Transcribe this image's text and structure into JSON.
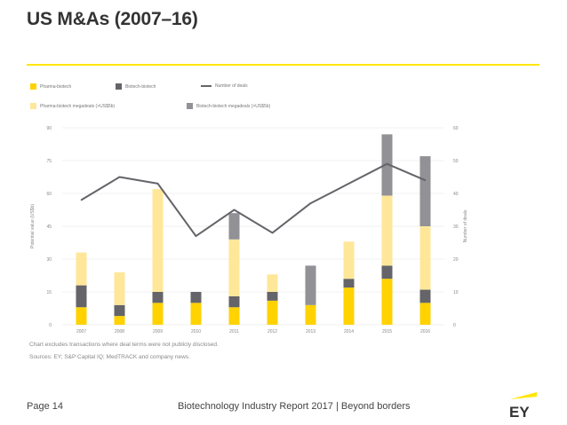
{
  "header": {
    "title": "US M&As (2007–16)"
  },
  "legend": {
    "items": [
      {
        "label": "Pharma-biotech",
        "color": "#ffd200"
      },
      {
        "label": "Biotech-biotech",
        "color": "#646469"
      },
      {
        "label": "Number of deals",
        "color": "#646469"
      },
      {
        "label": "Pharma-biotech megadeals (>US$5b)",
        "color": "#ffe79a"
      },
      {
        "label": "Biotech-biotech megadeals (>US$5b)",
        "color": "#919196"
      }
    ]
  },
  "chart_data": {
    "type": "bar",
    "stacked": true,
    "title": "US M&As (2007–16)",
    "xlabel": "",
    "ylabel": "Potential value (US$b)",
    "y2label": "Number of deals",
    "ylim": [
      0,
      90
    ],
    "y2lim": [
      0,
      60
    ],
    "yticks": [
      "0",
      "15",
      "30",
      "45",
      "60",
      "75",
      "90"
    ],
    "y2ticks": [
      "0",
      "10",
      "20",
      "30",
      "40",
      "50",
      "60"
    ],
    "categories": [
      "2007",
      "2008",
      "2009",
      "2010",
      "2011",
      "2012",
      "2013",
      "2014",
      "2015",
      "2016"
    ],
    "series": [
      {
        "name": "Pharma-biotech",
        "color": "#ffd200",
        "values": [
          8,
          4,
          10,
          10,
          8,
          11,
          9,
          17,
          21,
          10
        ]
      },
      {
        "name": "Biotech-biotech",
        "color": "#646469",
        "values": [
          10,
          5,
          5,
          5,
          5,
          4,
          0,
          4,
          6,
          6
        ]
      },
      {
        "name": "Pharma-biotech megadeals (>US$5b)",
        "color": "#ffe79a",
        "values": [
          15,
          15,
          47,
          0,
          26,
          8,
          0,
          17,
          32,
          29
        ]
      },
      {
        "name": "Biotech-biotech megadeals (>US$5b)",
        "color": "#919196",
        "values": [
          0,
          0,
          0,
          0,
          12,
          0,
          18,
          0,
          28,
          32
        ]
      }
    ],
    "line": {
      "name": "Number of deals",
      "color": "#646469",
      "values": [
        38,
        45,
        43,
        27,
        35,
        28,
        37,
        43,
        49,
        44
      ]
    },
    "gridlines": true
  },
  "notes": {
    "note": "Chart excludes transactions where deal terms were not publicly disclosed.",
    "sources": "Sources: EY; S&P Capital IQ; MedTRACK and company news."
  },
  "footer": {
    "page": "Page 14",
    "report": "Biotechnology Industry Report 2017 | Beyond borders",
    "logo_text": "EY"
  }
}
